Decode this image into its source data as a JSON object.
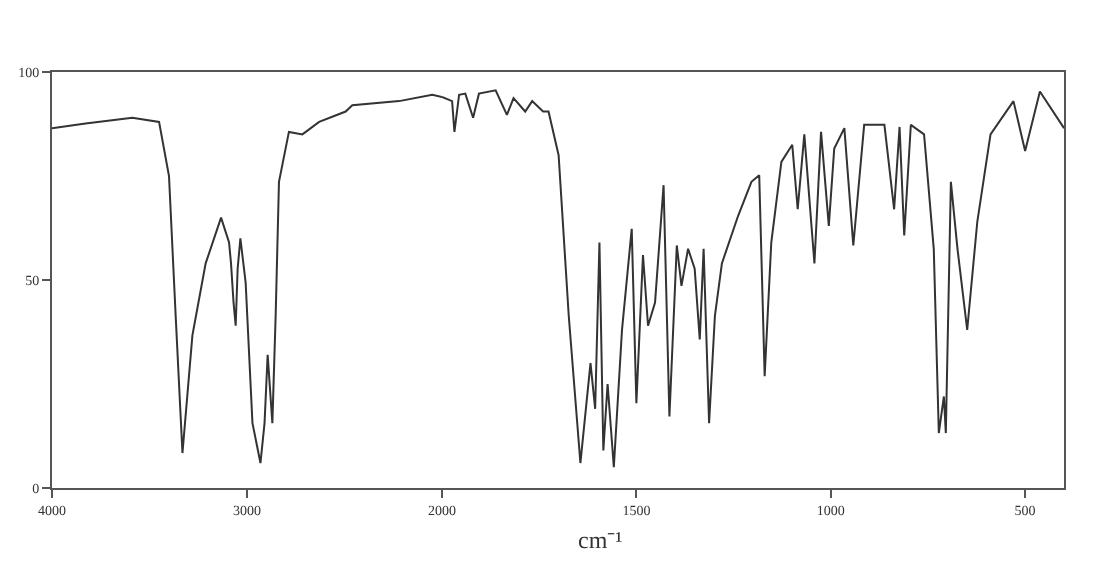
{
  "chart_data": [
    {
      "type": "line",
      "xlim": [
        4000,
        2000
      ],
      "xticks": [
        4000,
        3000,
        2000
      ],
      "ylim": [
        0,
        100
      ],
      "yticks": [
        0,
        50,
        100
      ],
      "grid": false,
      "marker": "none",
      "line_style": "solid",
      "series": [
        {
          "color": "#333333",
          "x": [
            4000,
            3828,
            3588,
            3451,
            3400,
            3366,
            3331,
            3280,
            3212,
            3133,
            3092,
            3082,
            3069,
            3058,
            3048,
            3034,
            3007,
            2972,
            2931,
            2910,
            2894,
            2870,
            2853,
            2836,
            2785,
            2716,
            2630,
            2494,
            2460,
            2220,
            2050,
            2000
          ],
          "values": [
            86.5,
            87.6,
            89,
            88,
            75,
            41.5,
            8.4,
            36.7,
            54,
            65,
            59,
            54,
            44.6,
            39,
            52.7,
            60,
            49.4,
            15.6,
            6,
            15.6,
            32,
            15.6,
            41.5,
            73.6,
            85.6,
            85,
            88,
            90.5,
            92,
            93,
            94.5,
            94
          ]
        }
      ]
    },
    {
      "type": "line",
      "xlabel": "cm⁻¹",
      "xlim": [
        2000,
        400
      ],
      "xticks": [
        1500,
        1000,
        500
      ],
      "ylim": [
        0,
        100
      ],
      "tick_labels": "x",
      "grid": false,
      "marker": "none",
      "line_style": "solid",
      "series": [
        {
          "color": "#333333",
          "x": [
            2000,
            1974,
            1968,
            1956,
            1940,
            1920,
            1905,
            1862,
            1833,
            1816,
            1786,
            1768,
            1740,
            1726,
            1700,
            1674,
            1644,
            1618,
            1606,
            1595,
            1585,
            1574,
            1558,
            1537,
            1512,
            1500,
            1483,
            1470,
            1452,
            1430,
            1415,
            1396,
            1384,
            1367,
            1350,
            1337,
            1327,
            1313,
            1298,
            1280,
            1238,
            1204,
            1184,
            1170,
            1153,
            1127,
            1099,
            1085,
            1068,
            1042,
            1025,
            1005,
            991,
            965,
            942,
            914,
            862,
            837,
            823,
            811,
            794,
            760,
            735,
            722,
            709,
            704,
            691,
            674,
            649,
            623,
            589,
            530,
            500,
            462,
            400
          ],
          "values": [
            94,
            93,
            85.6,
            94.5,
            94.8,
            89,
            94.8,
            95.6,
            89.7,
            93.7,
            90.5,
            93,
            90.5,
            90.5,
            80,
            41.4,
            6,
            30,
            19,
            59,
            9,
            25,
            5,
            38,
            62.3,
            20.4,
            56,
            39,
            44.6,
            72.8,
            17.2,
            58.3,
            48.6,
            57.5,
            52.7,
            35.7,
            57.5,
            15.6,
            41.4,
            54,
            65.5,
            73.6,
            75.2,
            26.9,
            59,
            78.4,
            82.5,
            67,
            85,
            54,
            85.6,
            63,
            81.6,
            86.5,
            58.3,
            87.3,
            87.3,
            67,
            86.8,
            60.7,
            87.3,
            85,
            57.5,
            13.2,
            22,
            13.2,
            73.6,
            57.5,
            38,
            64,
            85,
            93,
            81,
            95.3,
            86.5
          ]
        }
      ]
    }
  ]
}
